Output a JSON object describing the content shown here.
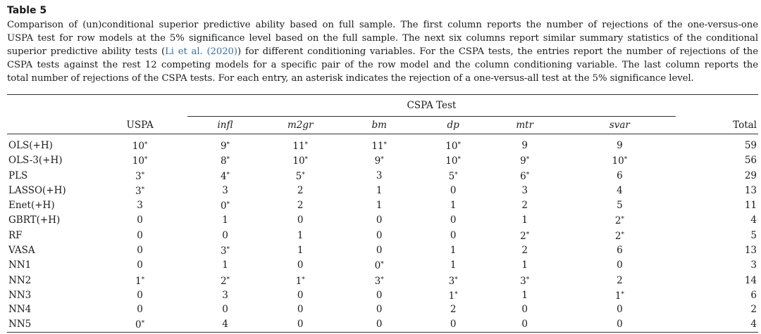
{
  "table": {
    "label": "Table 5",
    "caption_lines": [
      {
        "pre": "Comparison of (un)conditional superior predictive ability based on full sample. The first column reports the number of rejections of the one-versus-one",
        "cite": "",
        "post": ""
      },
      {
        "pre": "USPA test for row models at the 5% significance level based on the full sample. The next six columns report similar summary statistics of the conditional",
        "cite": "",
        "post": ""
      },
      {
        "pre": "superior predictive ability tests (",
        "cite": "Li et al. (2020)",
        "post": ") for different conditioning variables. For the CSPA tests, the entries report the number of rejections of the"
      },
      {
        "pre": "CSPA tests against the rest 12 competing models for a specific pair of the row model and the column conditioning variable. The last column reports the",
        "cite": "",
        "post": ""
      },
      {
        "pre": "total number of rejections of the CSPA tests. For each entry, an asterisk indicates the rejection of a one-versus-all test at the 5% significance level.",
        "cite": "",
        "post": ""
      }
    ],
    "group_header": "CSPA Test",
    "columns": [
      "USPA",
      "infl",
      "m2gr",
      "bm",
      "dp",
      "mtr",
      "svar",
      "Total"
    ],
    "rows": [
      {
        "model": "OLS(+H)",
        "cells": [
          [
            "10",
            "*"
          ],
          [
            "9",
            "*"
          ],
          [
            "11",
            "*"
          ],
          [
            "11",
            "*"
          ],
          [
            "10",
            "*"
          ],
          [
            "9",
            ""
          ],
          [
            "9",
            ""
          ],
          [
            "59",
            ""
          ]
        ]
      },
      {
        "model": "OLS-3(+H)",
        "cells": [
          [
            "10",
            "*"
          ],
          [
            "8",
            "*"
          ],
          [
            "10",
            "*"
          ],
          [
            "9",
            "*"
          ],
          [
            "10",
            "*"
          ],
          [
            "9",
            "*"
          ],
          [
            "10",
            "*"
          ],
          [
            "56",
            ""
          ]
        ]
      },
      {
        "model": "PLS",
        "cells": [
          [
            "3",
            "*"
          ],
          [
            "4",
            "*"
          ],
          [
            "5",
            "*"
          ],
          [
            "3",
            ""
          ],
          [
            "5",
            "*"
          ],
          [
            "6",
            "*"
          ],
          [
            "6",
            ""
          ],
          [
            "29",
            ""
          ]
        ]
      },
      {
        "model": "LASSO(+H)",
        "cells": [
          [
            "3",
            "*"
          ],
          [
            "3",
            ""
          ],
          [
            "2",
            ""
          ],
          [
            "1",
            ""
          ],
          [
            "0",
            ""
          ],
          [
            "3",
            ""
          ],
          [
            "4",
            ""
          ],
          [
            "13",
            ""
          ]
        ]
      },
      {
        "model": "Enet(+H)",
        "cells": [
          [
            "3",
            ""
          ],
          [
            "0",
            "*"
          ],
          [
            "2",
            ""
          ],
          [
            "1",
            ""
          ],
          [
            "1",
            ""
          ],
          [
            "2",
            ""
          ],
          [
            "5",
            ""
          ],
          [
            "11",
            ""
          ]
        ]
      },
      {
        "model": "GBRT(+H)",
        "cells": [
          [
            "0",
            ""
          ],
          [
            "1",
            ""
          ],
          [
            "0",
            ""
          ],
          [
            "0",
            ""
          ],
          [
            "0",
            ""
          ],
          [
            "1",
            ""
          ],
          [
            "2",
            "*"
          ],
          [
            "4",
            ""
          ]
        ]
      },
      {
        "model": "RF",
        "cells": [
          [
            "0",
            ""
          ],
          [
            "0",
            ""
          ],
          [
            "1",
            ""
          ],
          [
            "0",
            ""
          ],
          [
            "0",
            ""
          ],
          [
            "2",
            "*"
          ],
          [
            "2",
            "*"
          ],
          [
            "5",
            ""
          ]
        ]
      },
      {
        "model": "VASA",
        "cells": [
          [
            "0",
            ""
          ],
          [
            "3",
            "*"
          ],
          [
            "1",
            ""
          ],
          [
            "0",
            ""
          ],
          [
            "1",
            ""
          ],
          [
            "2",
            ""
          ],
          [
            "6",
            ""
          ],
          [
            "13",
            ""
          ]
        ]
      },
      {
        "model": "NN1",
        "cells": [
          [
            "0",
            ""
          ],
          [
            "1",
            ""
          ],
          [
            "0",
            ""
          ],
          [
            "0",
            "*"
          ],
          [
            "1",
            ""
          ],
          [
            "1",
            ""
          ],
          [
            "0",
            ""
          ],
          [
            "3",
            ""
          ]
        ]
      },
      {
        "model": "NN2",
        "cells": [
          [
            "1",
            "*"
          ],
          [
            "2",
            "*"
          ],
          [
            "1",
            "*"
          ],
          [
            "3",
            "*"
          ],
          [
            "3",
            "*"
          ],
          [
            "3",
            "*"
          ],
          [
            "2",
            ""
          ],
          [
            "14",
            ""
          ]
        ]
      },
      {
        "model": "NN3",
        "cells": [
          [
            "0",
            ""
          ],
          [
            "3",
            ""
          ],
          [
            "0",
            ""
          ],
          [
            "0",
            ""
          ],
          [
            "1",
            "*"
          ],
          [
            "1",
            ""
          ],
          [
            "1",
            "*"
          ],
          [
            "6",
            ""
          ]
        ]
      },
      {
        "model": "NN4",
        "cells": [
          [
            "0",
            ""
          ],
          [
            "0",
            ""
          ],
          [
            "0",
            ""
          ],
          [
            "0",
            ""
          ],
          [
            "2",
            ""
          ],
          [
            "0",
            ""
          ],
          [
            "0",
            ""
          ],
          [
            "2",
            ""
          ]
        ]
      },
      {
        "model": "NN5",
        "cells": [
          [
            "0",
            "*"
          ],
          [
            "4",
            ""
          ],
          [
            "0",
            ""
          ],
          [
            "0",
            ""
          ],
          [
            "0",
            ""
          ],
          [
            "0",
            ""
          ],
          [
            "0",
            ""
          ],
          [
            "4",
            ""
          ]
        ]
      }
    ]
  }
}
